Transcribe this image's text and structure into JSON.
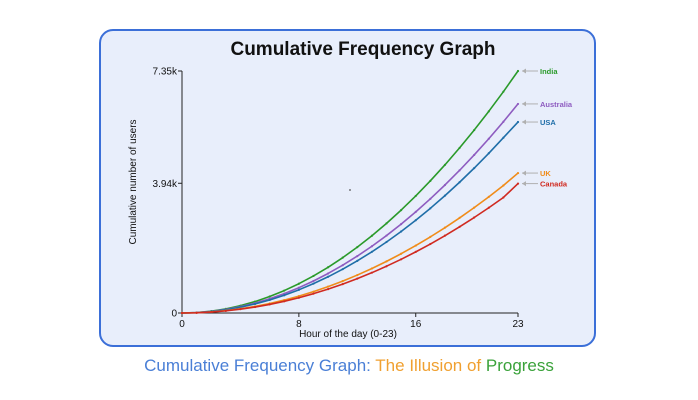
{
  "colors": {
    "card_background": "#e8eefb",
    "card_border": "#3b6fd8",
    "axis": "#222222",
    "caption_part1": "#4a7fd6",
    "caption_part2": "#f0a030",
    "caption_part3": "#3aa23a"
  },
  "chart_data": {
    "type": "line",
    "title": "Cumulative Frequency Graph",
    "xlabel": "Hour of the day (0-23)",
    "ylabel": "Cumulative number of users",
    "xlim": [
      0,
      23
    ],
    "ylim": [
      0,
      7350
    ],
    "x_ticks": [
      {
        "value": 0,
        "label": "0"
      },
      {
        "value": 8,
        "label": "8"
      },
      {
        "value": 16,
        "label": "16"
      },
      {
        "value": 23,
        "label": "23"
      }
    ],
    "y_ticks": [
      {
        "value": 0,
        "label": "0"
      },
      {
        "value": 3940,
        "label": "3.94k"
      },
      {
        "value": 7350,
        "label": "7.35k"
      }
    ],
    "grid": false,
    "legend": "end-of-line labels",
    "x": [
      0,
      1,
      2,
      3,
      4,
      5,
      6,
      7,
      8,
      9,
      10,
      11,
      12,
      13,
      14,
      15,
      16,
      17,
      18,
      19,
      20,
      21,
      22,
      23
    ],
    "series": [
      {
        "name": "India",
        "color": "#2a9a2a",
        "values": [
          0,
          14,
          56,
          125,
          222,
          347,
          500,
          681,
          889,
          1125,
          1389,
          1681,
          2000,
          2347,
          2722,
          3125,
          3556,
          4014,
          4500,
          5014,
          5556,
          6125,
          6722,
          7350
        ]
      },
      {
        "name": "Australia",
        "color": "#8e5cc0",
        "values": [
          0,
          12,
          48,
          108,
          192,
          300,
          432,
          588,
          768,
          972,
          1200,
          1452,
          1728,
          2028,
          2352,
          2700,
          3072,
          3468,
          3888,
          4332,
          4800,
          5292,
          5808,
          6350
        ]
      },
      {
        "name": "USA",
        "color": "#1f6ea8",
        "values": [
          0,
          11,
          44,
          99,
          176,
          275,
          396,
          539,
          704,
          891,
          1100,
          1331,
          1584,
          1859,
          2156,
          2475,
          2816,
          3179,
          3564,
          3971,
          4400,
          4851,
          5324,
          5800
        ]
      },
      {
        "name": "UK",
        "color": "#f08c1a",
        "values": [
          0,
          8,
          32,
          72,
          128,
          200,
          288,
          392,
          512,
          648,
          800,
          968,
          1152,
          1352,
          1568,
          1800,
          2048,
          2312,
          2592,
          2888,
          3200,
          3528,
          3872,
          4250
        ]
      },
      {
        "name": "Canada",
        "color": "#d02a20",
        "values": [
          0,
          7,
          29,
          65,
          116,
          181,
          261,
          355,
          464,
          587,
          725,
          877,
          1044,
          1225,
          1421,
          1631,
          1856,
          2095,
          2349,
          2617,
          2900,
          3197,
          3509,
          3930
        ]
      }
    ]
  },
  "caption": {
    "part1": "Cumulative Frequency Graph: ",
    "part2": "The Illusion of ",
    "part3": "Progress"
  }
}
